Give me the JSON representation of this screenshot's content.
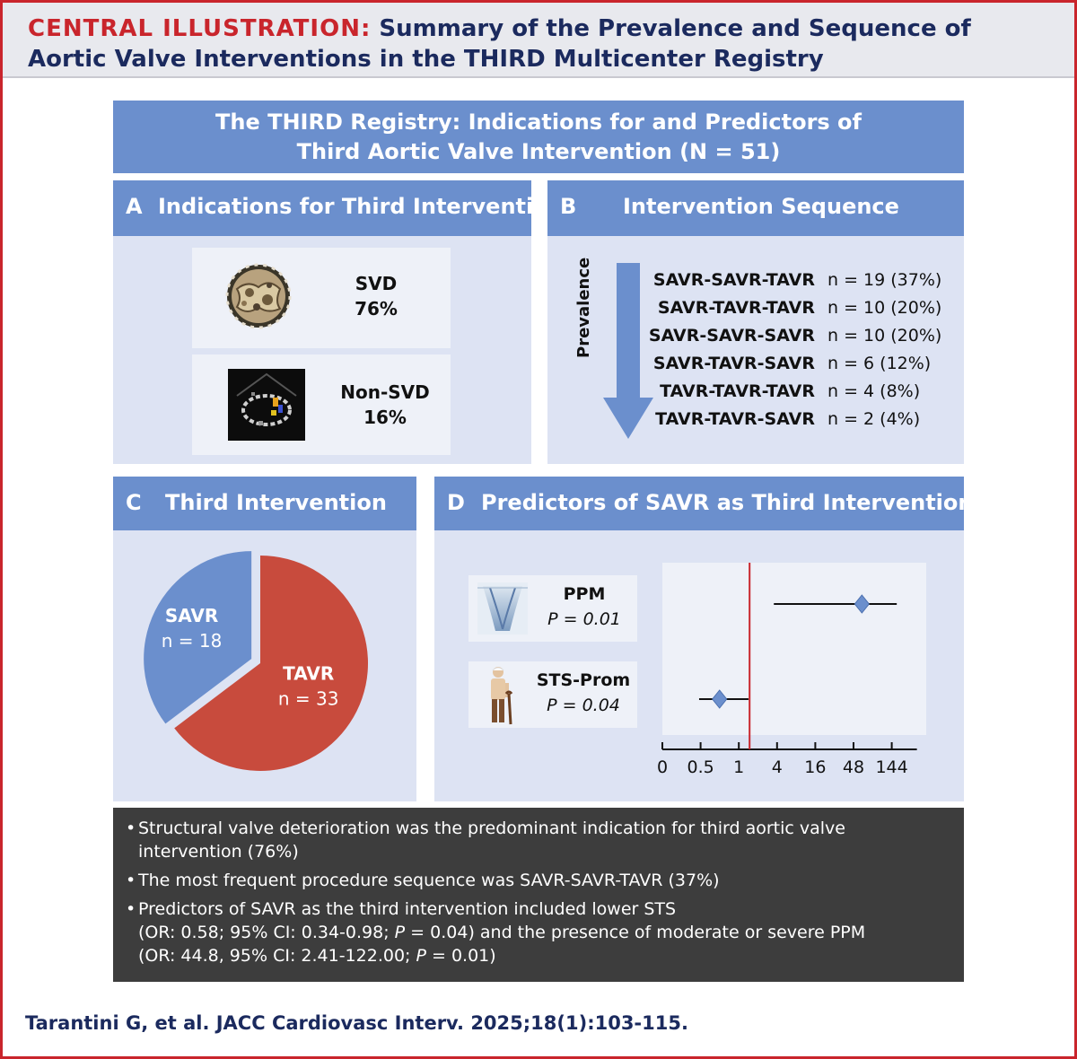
{
  "header": {
    "label": "CENTRAL ILLUSTRATION:",
    "title_line1": "Summary of the Prevalence and Sequence of",
    "title_line2": "Aortic Valve Interventions in the THIRD Multicenter Registry"
  },
  "banner": {
    "line1": "The THIRD Registry: Indications for and Predictors of",
    "line2": "Third Aortic Valve Intervention (N = 51)"
  },
  "panelA": {
    "letter": "A",
    "title": "Indications for Third Intervention",
    "items": [
      {
        "label": "SVD",
        "value": "76%",
        "icon": "prosthetic-valve-photo"
      },
      {
        "label": "Non-SVD",
        "value": "16%",
        "icon": "echocardiogram-image"
      }
    ]
  },
  "panelB": {
    "letter": "B",
    "title": "Intervention Sequence",
    "arrow_label": "Prevalence",
    "rows": [
      {
        "sequence": "SAVR-SAVR-TAVR",
        "count": "n = 19 (37%)"
      },
      {
        "sequence": "SAVR-TAVR-TAVR",
        "count": "n = 10 (20%)"
      },
      {
        "sequence": "SAVR-SAVR-SAVR",
        "count": "n = 10 (20%)"
      },
      {
        "sequence": "SAVR-TAVR-SAVR",
        "count": "n = 6 (12%)"
      },
      {
        "sequence": "TAVR-TAVR-TAVR",
        "count": "n = 4 (8%)"
      },
      {
        "sequence": "TAVR-TAVR-SAVR",
        "count": "n = 2 (4%)"
      }
    ]
  },
  "panelC": {
    "letter": "C",
    "title": "Third Intervention",
    "slices": [
      {
        "label": "SAVR",
        "count_label": "n = 18",
        "value": 18,
        "color": "#6b8fcd"
      },
      {
        "label": "TAVR",
        "count_label": "n = 33",
        "value": 33,
        "color": "#c84b3d"
      }
    ]
  },
  "panelD": {
    "letter": "D",
    "title": "Predictors of SAVR as Third Intervention",
    "predictors": [
      {
        "name": "PPM",
        "p_label": "P = 0.01",
        "icon": "doppler-flow-image",
        "or": 44.8,
        "ci_low": 2.41,
        "ci_high": 122.0
      },
      {
        "name": "STS-Prom",
        "p_label": "P = 0.04",
        "icon": "elderly-person-icon",
        "or": 0.58,
        "ci_low": 0.34,
        "ci_high": 0.98
      }
    ],
    "axis_ticks": [
      "0",
      "0.5",
      "1",
      "4",
      "16",
      "48",
      "144"
    ],
    "reference_value": 1,
    "reference_color": "#c9252c",
    "marker_color": "#6b8fcd"
  },
  "summary": {
    "b1_line1": "Structural valve deterioration was the predominant indication for third aortic valve",
    "b1_line2": "intervention (76%)",
    "b2": "The most frequent procedure sequence was SAVR-SAVR-TAVR (37%)",
    "b3_line1": "Predictors of SAVR as the third intervention included lower STS",
    "b3_line2a": "(OR: 0.58; 95% CI: 0.34-0.98; ",
    "b3_line2p": "P",
    "b3_line2b": " = 0.04) and the presence of moderate or severe PPM",
    "b3_line3a": "(OR: 44.8, 95% CI: 2.41-122.00; ",
    "b3_line3p": "P",
    "b3_line3b": " = 0.01)"
  },
  "citation": "Tarantini G, et al. JACC Cardiovasc Interv. 2025;18(1):103-115."
}
